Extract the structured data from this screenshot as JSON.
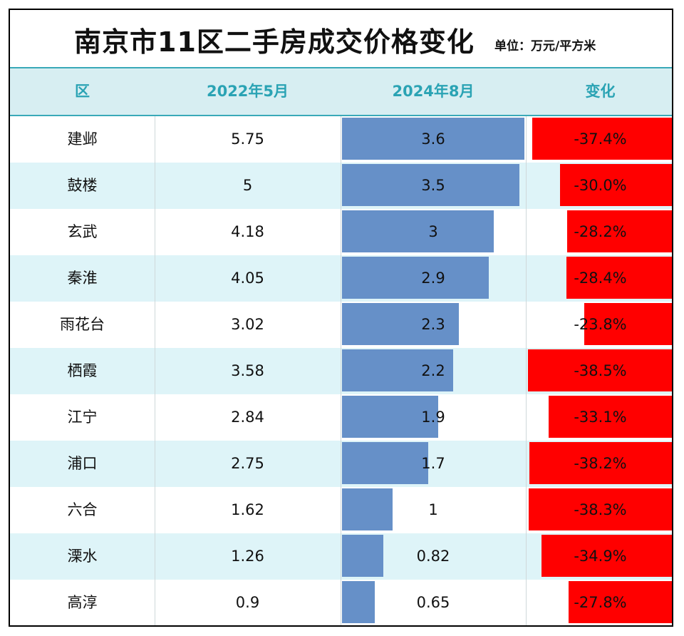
{
  "title": "南京市11区二手房成交价格变化",
  "unit": "单位：万元/平方米",
  "headers": {
    "district": "区",
    "may2022": "2022年5月",
    "aug2024": "2024年8月",
    "change": "变化"
  },
  "colors": {
    "bar_price": "#6690c8",
    "bar_change": "#ff0000",
    "header_bg": "#d7eef2",
    "header_text": "#2aa3b4",
    "row_alt": "#def4f8"
  },
  "chart_data": {
    "type": "table",
    "columns": [
      "区",
      "2022年5月",
      "2024年8月",
      "变化"
    ],
    "rows": [
      {
        "district": "建邺",
        "may2022": "5.75",
        "aug2024": "3.6",
        "change": "-37.4%",
        "aug_value": 3.6,
        "change_value": -37.4
      },
      {
        "district": "鼓楼",
        "may2022": "5",
        "aug2024": "3.5",
        "change": "-30.0%",
        "aug_value": 3.5,
        "change_value": -30.0
      },
      {
        "district": "玄武",
        "may2022": "4.18",
        "aug2024": "3",
        "change": "-28.2%",
        "aug_value": 3.0,
        "change_value": -28.2
      },
      {
        "district": "秦淮",
        "may2022": "4.05",
        "aug2024": "2.9",
        "change": "-28.4%",
        "aug_value": 2.9,
        "change_value": -28.4
      },
      {
        "district": "雨花台",
        "may2022": "3.02",
        "aug2024": "2.3",
        "change": "-23.8%",
        "aug_value": 2.3,
        "change_value": -23.8
      },
      {
        "district": "栖霞",
        "may2022": "3.58",
        "aug2024": "2.2",
        "change": "-38.5%",
        "aug_value": 2.2,
        "change_value": -38.5
      },
      {
        "district": "江宁",
        "may2022": "2.84",
        "aug2024": "1.9",
        "change": "-33.1%",
        "aug_value": 1.9,
        "change_value": -33.1
      },
      {
        "district": "浦口",
        "may2022": "2.75",
        "aug2024": "1.7",
        "change": "-38.2%",
        "aug_value": 1.7,
        "change_value": -38.2
      },
      {
        "district": "六合",
        "may2022": "1.62",
        "aug2024": "1",
        "change": "-38.3%",
        "aug_value": 1.0,
        "change_value": -38.3
      },
      {
        "district": "溧水",
        "may2022": "1.26",
        "aug2024": "0.82",
        "change": "-34.9%",
        "aug_value": 0.82,
        "change_value": -34.9
      },
      {
        "district": "高淳",
        "may2022": "0.9",
        "aug2024": "0.65",
        "change": "-27.8%",
        "aug_value": 0.65,
        "change_value": -27.8
      }
    ]
  }
}
